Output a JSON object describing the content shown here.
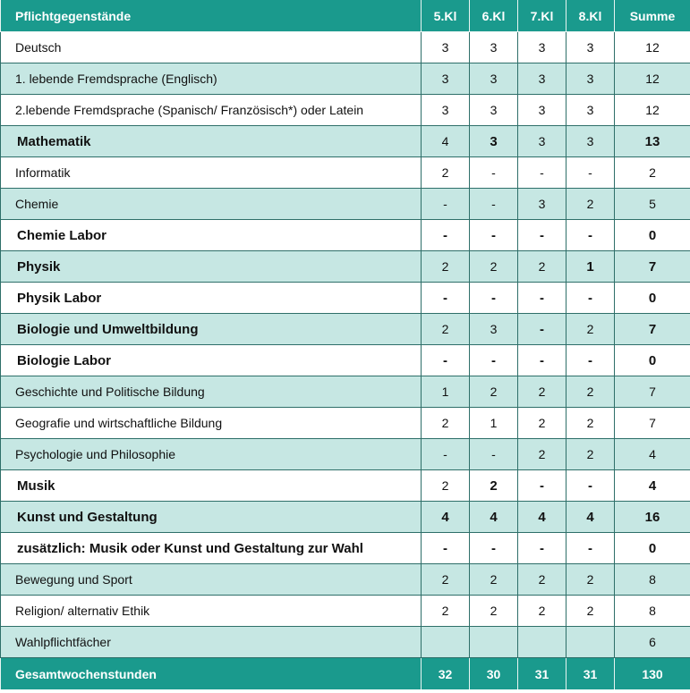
{
  "table": {
    "header": [
      "Pflichtgegenstände",
      "5.Kl",
      "6.Kl",
      "7.Kl",
      "8.Kl",
      "Summe"
    ],
    "rows": [
      [
        "Deutsch",
        3,
        3,
        3,
        3,
        12
      ],
      [
        "1. lebende Fremdsprache (Englisch)",
        3,
        3,
        3,
        3,
        12
      ],
      [
        "2.lebende Fremdsprache (Spanisch/ Französisch*) oder Latein",
        3,
        3,
        3,
        3,
        12
      ],
      [
        "Mathematik",
        4,
        3,
        3,
        3,
        13
      ],
      [
        "Informatik",
        2,
        "-",
        "-",
        "-",
        2
      ],
      [
        "Chemie",
        "-",
        "-",
        3,
        2,
        5
      ],
      [
        "Chemie Labor",
        "-",
        "-",
        "-",
        "-",
        0
      ],
      [
        "Physik",
        2,
        2,
        2,
        1,
        7
      ],
      [
        "Physik Labor",
        "-",
        "-",
        "-",
        "-",
        0
      ],
      [
        "Biologie und Umweltbildung",
        2,
        3,
        "-",
        2,
        7
      ],
      [
        "Biologie Labor",
        "-",
        "-",
        "-",
        "-",
        0
      ],
      [
        "Geschichte und Politische Bildung",
        1,
        2,
        2,
        2,
        7
      ],
      [
        "Geografie und wirtschaftliche Bildung",
        2,
        1,
        2,
        2,
        7
      ],
      [
        "Psychologie und Philosophie",
        "-",
        "-",
        2,
        2,
        4
      ],
      [
        "Musik",
        2,
        2,
        "-",
        "-",
        4
      ],
      [
        "Kunst und Gestaltung",
        4,
        4,
        4,
        4,
        16
      ],
      [
        "zusätzlich: Musik oder Kunst und Gestaltung zur Wahl",
        "-",
        "-",
        "-",
        "-",
        0
      ],
      [
        "Bewegung und Sport",
        2,
        2,
        2,
        2,
        8
      ],
      [
        "Religion/ alternativ Ethik",
        2,
        2,
        2,
        2,
        8
      ],
      [
        "Wahlpflichtfächer",
        null,
        null,
        null,
        null,
        6
      ]
    ],
    "footer": [
      "Gesamtwochenstunden",
      32,
      30,
      31,
      31,
      130
    ]
  }
}
